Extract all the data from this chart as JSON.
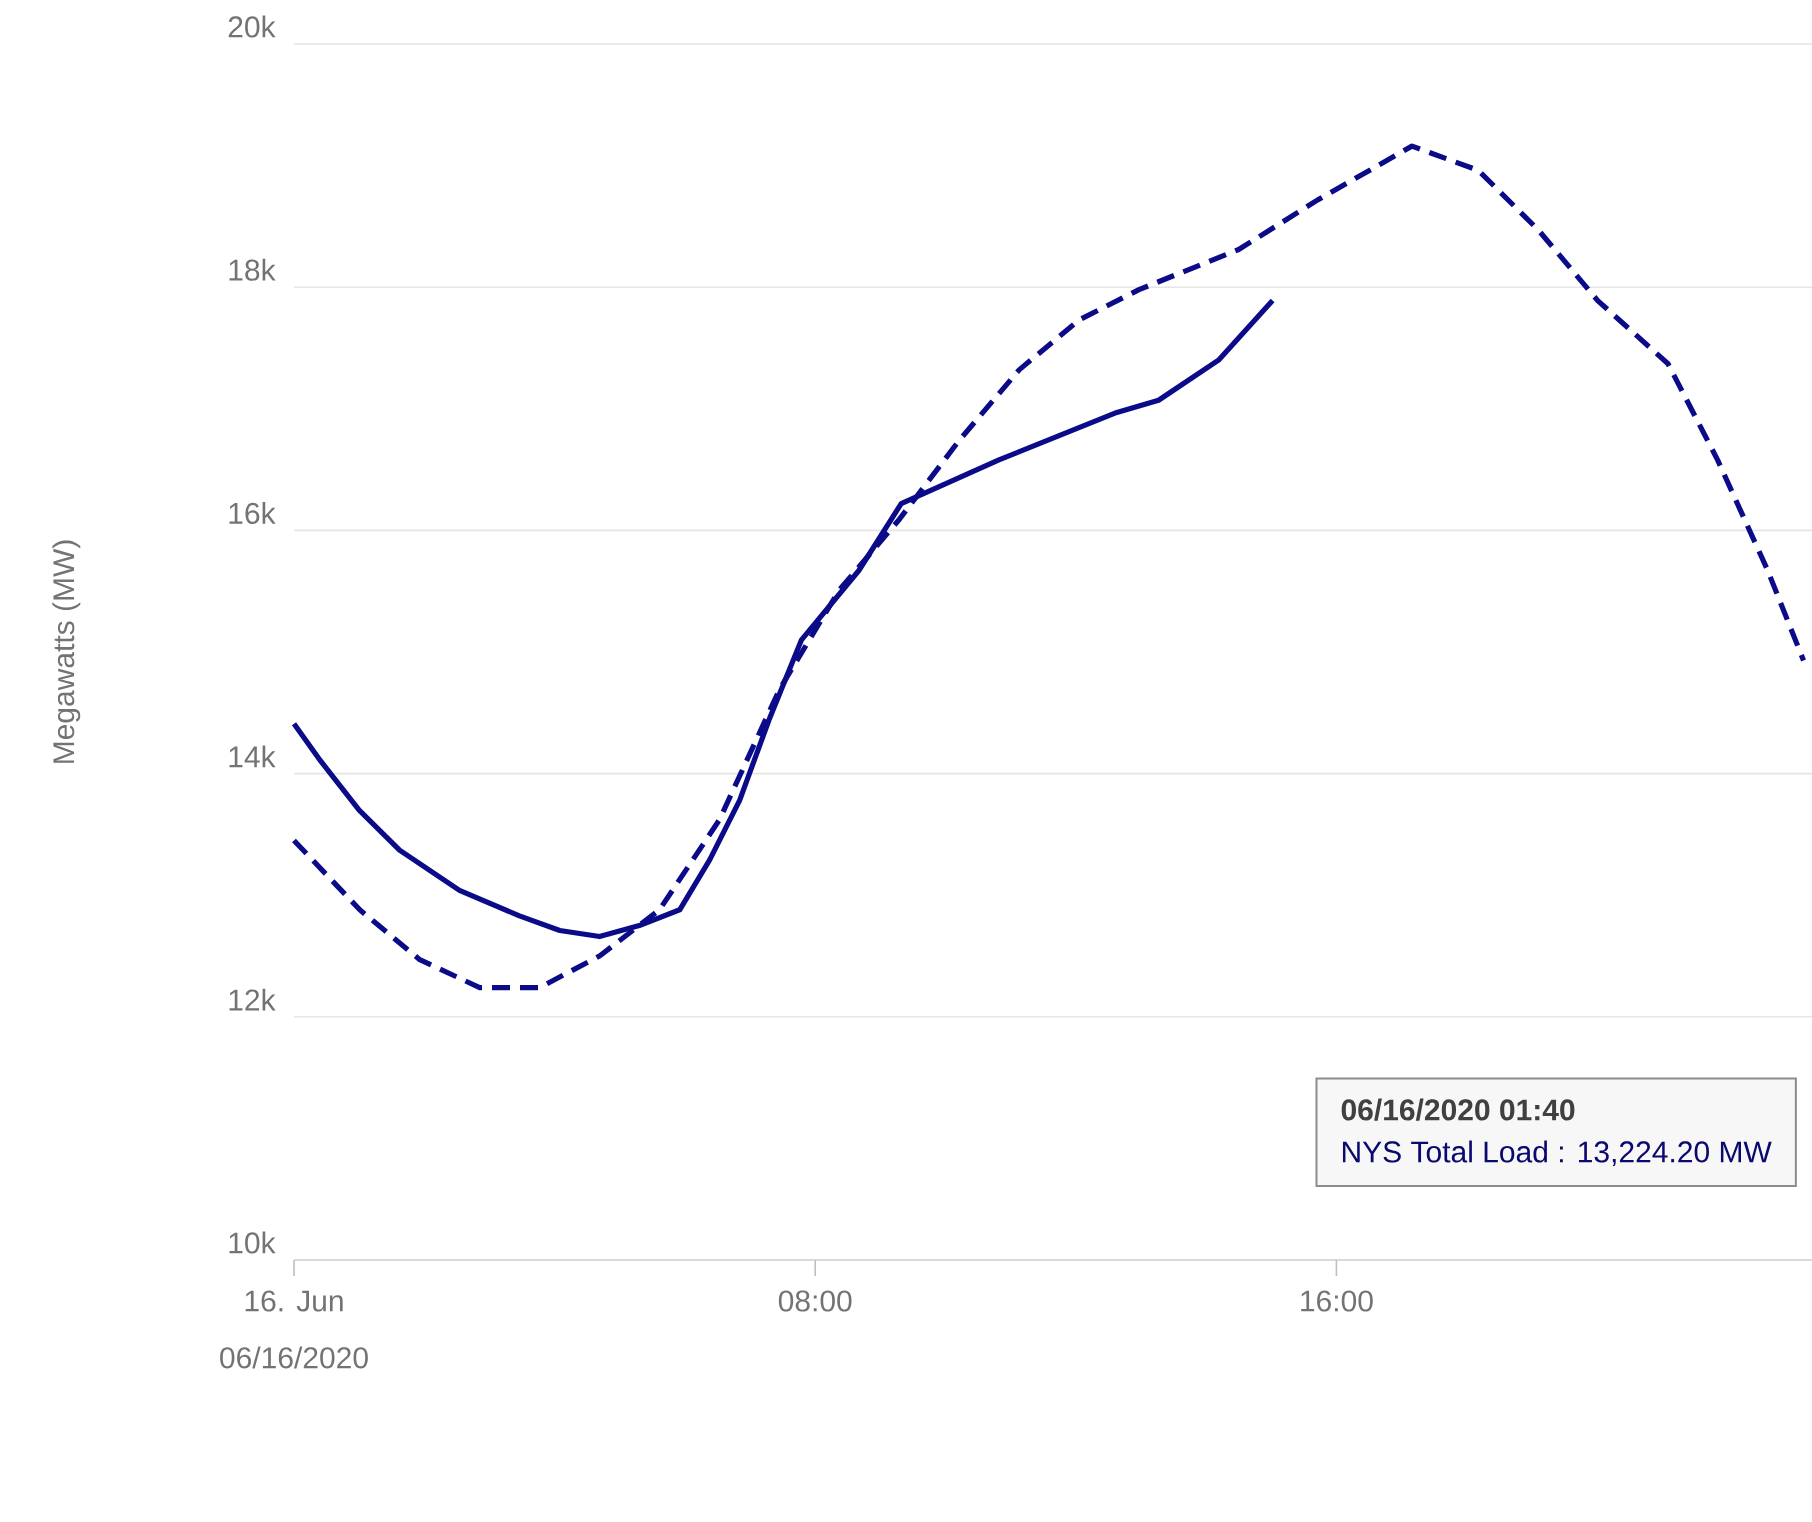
{
  "chart_data": {
    "type": "line",
    "ylabel": "Megawatts (MW)",
    "xlabel": "06/16/2020",
    "xlim": [
      0,
      23.3
    ],
    "ylim": [
      10000,
      20000
    ],
    "xticks": [
      {
        "value": 0,
        "label": "16. Jun"
      },
      {
        "value": 8,
        "label": "08:00"
      },
      {
        "value": 16,
        "label": "16:00"
      }
    ],
    "yticks": [
      {
        "value": 10000,
        "label": "10k"
      },
      {
        "value": 12000,
        "label": "12k"
      },
      {
        "value": 14000,
        "label": "14k"
      },
      {
        "value": 16000,
        "label": "16k"
      },
      {
        "value": 18000,
        "label": "18k"
      },
      {
        "value": 20000,
        "label": "20k"
      }
    ],
    "grid": "y",
    "marker": "none",
    "annotations": [
      "06/16/2020 01:40",
      "NYS Total Load : 13,224.20 MW"
    ],
    "series": [
      {
        "color": "#0b0b8a",
        "line_style": "solid",
        "x": [
          0,
          0.4,
          1.0,
          1.62,
          2.54,
          3.46,
          4.08,
          4.69,
          5.3,
          5.92,
          6.38,
          6.84,
          7.29,
          7.79,
          8.67,
          9.32,
          10.82,
          12.63,
          13.27,
          14.19,
          15.02
        ],
        "values": [
          14410,
          14110,
          13700,
          13370,
          13040,
          12830,
          12710,
          12660,
          12750,
          12880,
          13290,
          13780,
          14440,
          15100,
          15670,
          16220,
          16580,
          16970,
          17070,
          17400,
          17890
        ]
      },
      {
        "color": "#0b0b8a",
        "line_style": "dashed",
        "x": [
          0,
          1.01,
          1.93,
          2.85,
          3.77,
          4.69,
          5.61,
          6.53,
          7.45,
          8.37,
          9.29,
          10.21,
          11.13,
          12.05,
          12.97,
          14.5,
          15.72,
          17.16,
          18.18,
          19.1,
          20.01,
          21.09,
          21.85,
          22.62,
          23.17
        ],
        "values": [
          13450,
          12880,
          12470,
          12240,
          12240,
          12500,
          12880,
          13620,
          14690,
          15510,
          16090,
          16740,
          17320,
          17730,
          17980,
          18310,
          18720,
          19160,
          18960,
          18470,
          17890,
          17370,
          16580,
          15670,
          14930
        ]
      }
    ]
  }
}
